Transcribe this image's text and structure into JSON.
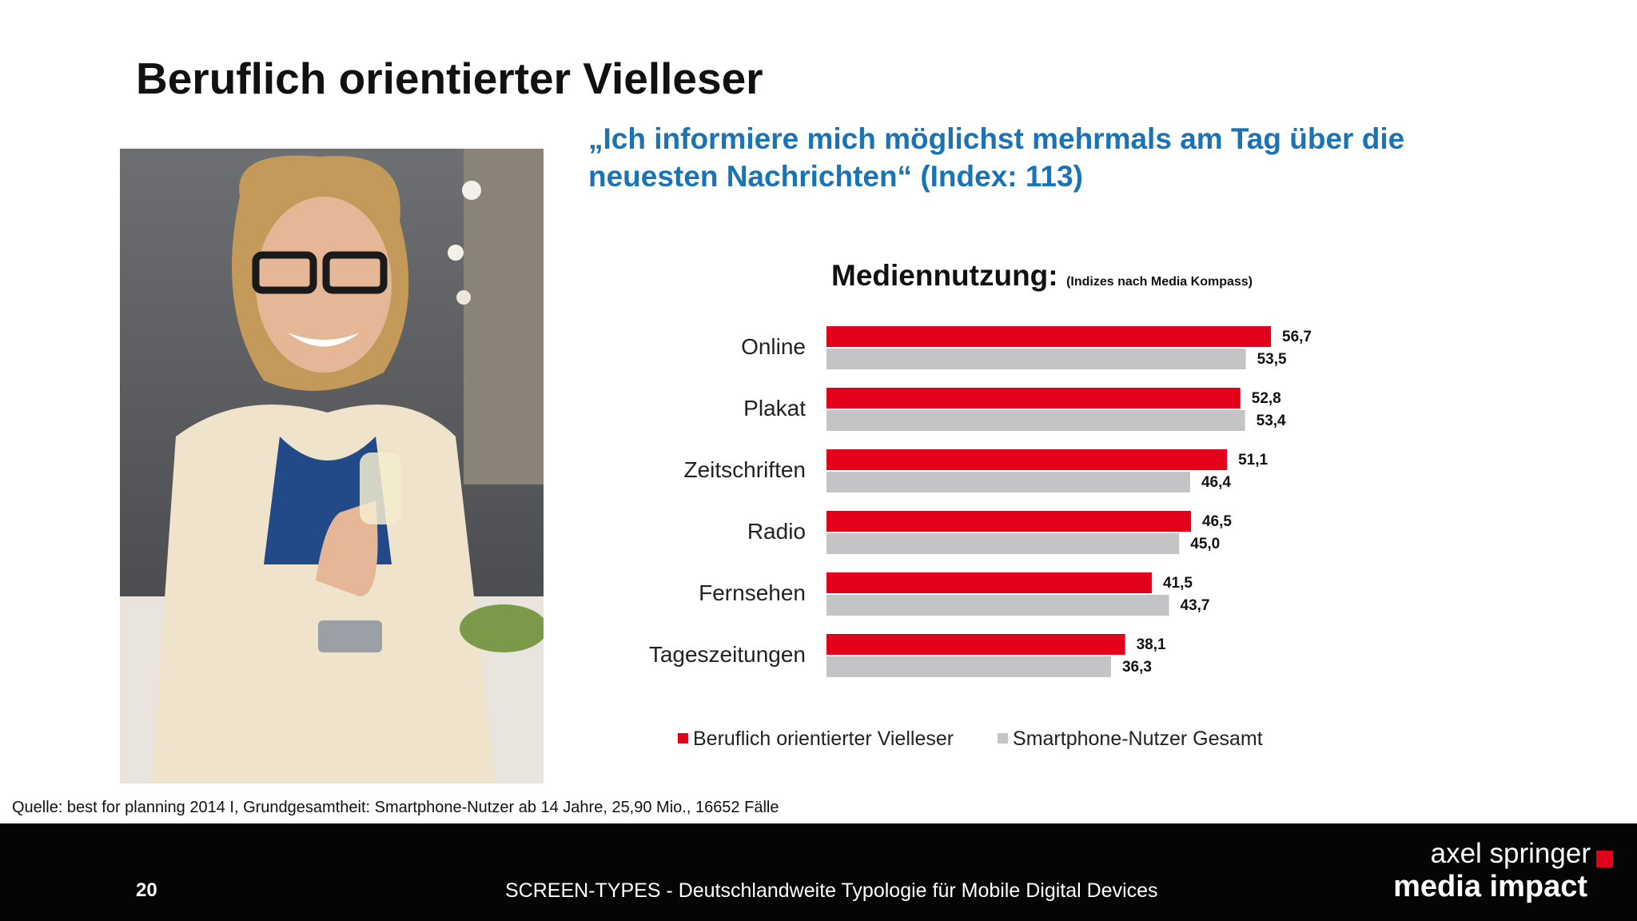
{
  "slide": {
    "title": "Beruflich orientierter Vielleser",
    "quote": "„Ich informiere mich möglichst mehrmals am Tag über die neuesten Nachrichten“ (Index: 113)",
    "source": "Quelle: best for planning 2014 I, Grundgesamtheit: Smartphone-Nutzer ab 14 Jahre, 25,90 Mio., 16652 Fälle"
  },
  "footer": {
    "page_number": "20",
    "text": "SCREEN-TYPES - Deutschlandweite Typologie für Mobile Digital Devices",
    "logo_line1": "axel springer",
    "logo_line2": "media impact"
  },
  "colors": {
    "accent_blue": "#1a73b5",
    "series_red": "#e2001a",
    "series_grey": "#c4c3c5",
    "footer_bg": "#050505"
  },
  "chart_data": {
    "type": "bar",
    "orientation": "horizontal",
    "title": "Mediennutzung:",
    "subtitle": "(Indizes nach Media Kompass)",
    "categories": [
      "Online",
      "Plakat",
      "Zeitschriften",
      "Radio",
      "Fernsehen",
      "Tageszeitungen"
    ],
    "series": [
      {
        "name": "Beruflich orientierter Vielleser",
        "color": "#e2001a",
        "values": [
          56.7,
          52.8,
          51.1,
          46.5,
          41.5,
          38.1
        ],
        "labels": [
          "56,7",
          "52,8",
          "51,1",
          "46,5",
          "41,5",
          "38,1"
        ]
      },
      {
        "name": "Smartphone-Nutzer Gesamt",
        "color": "#c4c3c5",
        "values": [
          53.5,
          53.4,
          46.4,
          45.0,
          43.7,
          36.3
        ],
        "labels": [
          "53,5",
          "53,4",
          "46,4",
          "45,0",
          "43,7",
          "36,3"
        ]
      }
    ],
    "xlim": [
      0,
      60
    ],
    "grid": false,
    "legend_position": "bottom"
  }
}
